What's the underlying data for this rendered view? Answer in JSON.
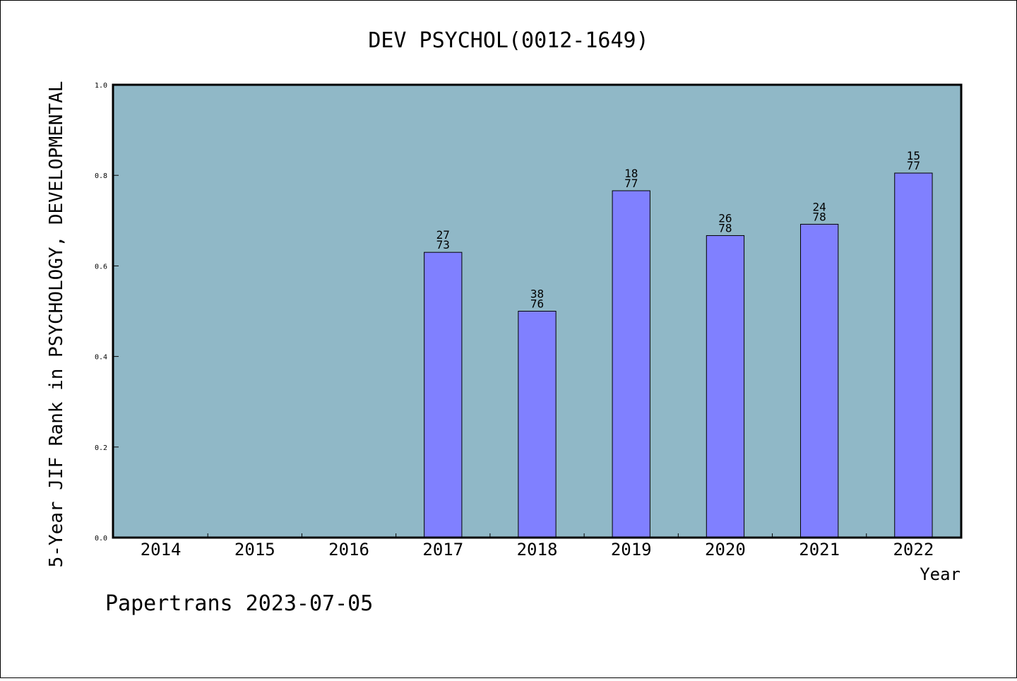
{
  "chart_data": {
    "type": "bar",
    "title": "DEV PSYCHOL(0012-1649)",
    "xlabel": "Year",
    "ylabel": "5-Year JIF Rank in PSYCHOLOGY, DEVELOPMENTAL",
    "categories": [
      "2014",
      "2015",
      "2016",
      "2017",
      "2018",
      "2019",
      "2020",
      "2021",
      "2022"
    ],
    "values": [
      null,
      null,
      null,
      0.63,
      0.5,
      0.766,
      0.667,
      0.692,
      0.805
    ],
    "bar_labels": [
      null,
      null,
      null,
      {
        "top": "27",
        "bottom": "73"
      },
      {
        "top": "38",
        "bottom": "76"
      },
      {
        "top": "18",
        "bottom": "77"
      },
      {
        "top": "26",
        "bottom": "78"
      },
      {
        "top": "24",
        "bottom": "78"
      },
      {
        "top": "15",
        "bottom": "77"
      }
    ],
    "ylim": [
      0.0,
      1.0
    ],
    "yticks": [
      "0.0",
      "0.2",
      "0.4",
      "0.6",
      "0.8",
      "1.0"
    ],
    "grid": false,
    "colors": {
      "plot_background": "#90B8C7",
      "bar": "#8080FF",
      "bar_edge": "#000000"
    }
  },
  "footer": {
    "text": "Papertrans 2023-07-05"
  }
}
